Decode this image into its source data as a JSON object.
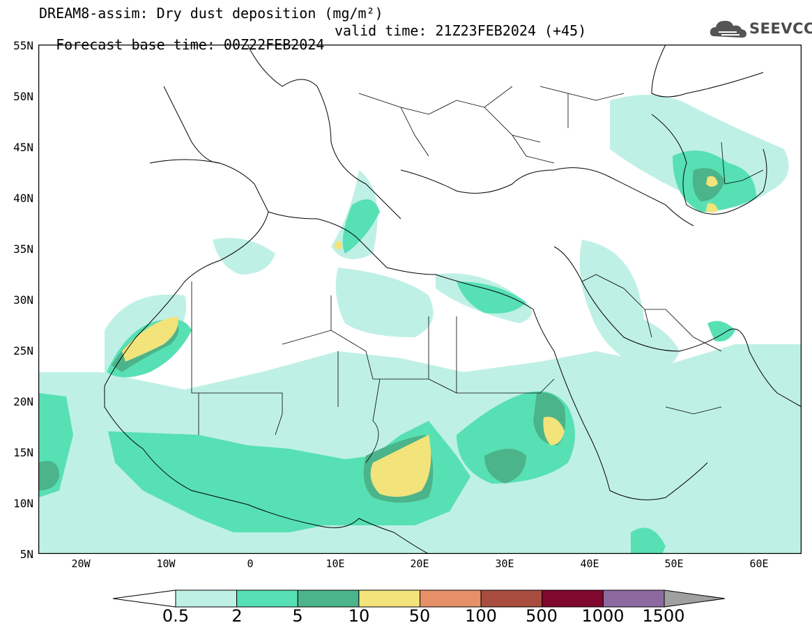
{
  "header": {
    "title_line1": "DREAM8-assim: Dry dust deposition (mg/m²)",
    "title_line2_base": "Forecast base time: 00Z22FEB2024",
    "title_line2_valid": "valid time: 21Z23FEB2024 (+45)"
  },
  "logo": {
    "text": "SEEVCCC",
    "icon": "cloud-icon"
  },
  "axes": {
    "lat_labels": [
      "55N",
      "50N",
      "45N",
      "40N",
      "35N",
      "30N",
      "25N",
      "20N",
      "15N",
      "10N",
      "5N"
    ],
    "lon_labels": [
      "20W",
      "10W",
      "0",
      "10E",
      "20E",
      "30E",
      "40E",
      "50E",
      "60E"
    ]
  },
  "colorbar": {
    "levels": [
      "0.5",
      "2",
      "5",
      "10",
      "50",
      "100",
      "500",
      "1000",
      "1500"
    ],
    "colors": [
      "#bff0e6",
      "#57e0b4",
      "#4cb48a",
      "#f2e37a",
      "#e69068",
      "#a84c3e",
      "#80082e",
      "#8c6aa0"
    ]
  }
}
